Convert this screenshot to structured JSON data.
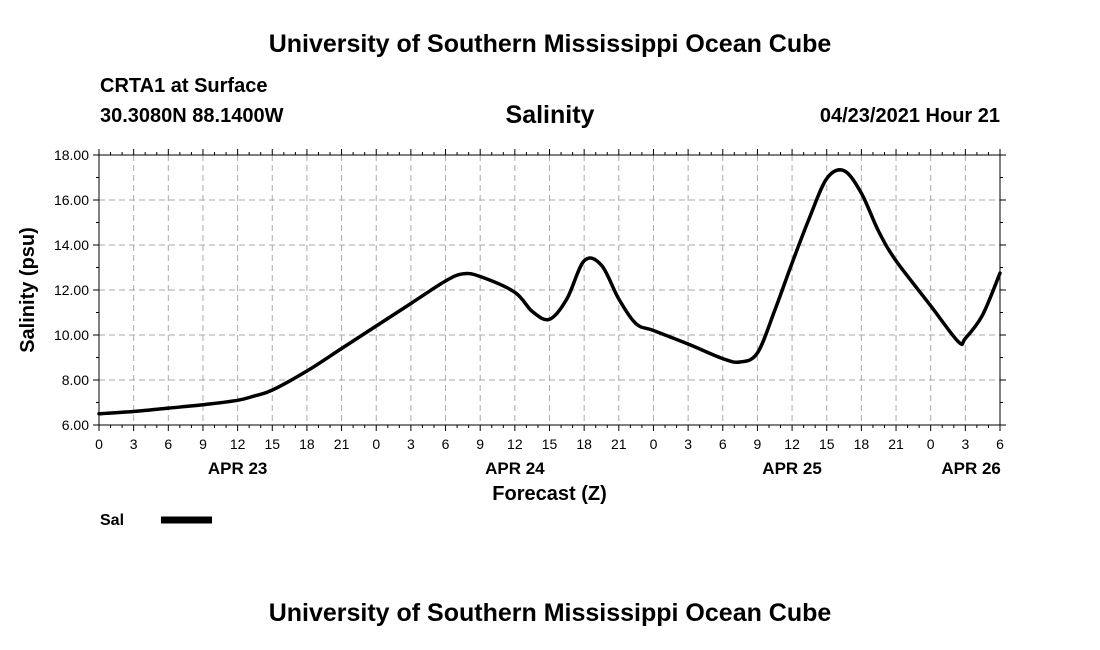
{
  "header": {
    "title": "University of Southern Mississippi Ocean Cube",
    "station": "CRTA1 at Surface",
    "coordinates": "30.3080N  88.1400W",
    "variable": "Salinity",
    "datetime": "04/23/2021 Hour 21"
  },
  "footer": {
    "title": "University of Southern Mississippi Ocean Cube"
  },
  "chart_data": {
    "type": "line",
    "title": "Salinity",
    "xlabel": "Forecast (Z)",
    "ylabel": "Salinity (psu)",
    "ylim": [
      6,
      18
    ],
    "y_ticks": [
      "6.00",
      "8.00",
      "10.00",
      "12.00",
      "14.00",
      "16.00",
      "18.00"
    ],
    "xlim": [
      0,
      78
    ],
    "x_unit": "hours from 00Z APR 23",
    "x_tick_labels": [
      "0",
      "3",
      "6",
      "9",
      "12",
      "15",
      "18",
      "21",
      "0",
      "3",
      "6",
      "9",
      "12",
      "15",
      "18",
      "21",
      "0",
      "3",
      "6",
      "9",
      "12",
      "15",
      "18",
      "21",
      "0",
      "3",
      "6"
    ],
    "date_labels": [
      {
        "label": "APR 23",
        "hour": 12
      },
      {
        "label": "APR 24",
        "hour": 36
      },
      {
        "label": "APR 25",
        "hour": 60
      },
      {
        "label": "APR 26",
        "hour": 75.5
      }
    ],
    "grid": true,
    "legend": {
      "placement": "bottom-left",
      "entries": [
        "Sal"
      ]
    },
    "series": [
      {
        "name": "Sal",
        "color": "#000000",
        "x": [
          0,
          3,
          6,
          9,
          12,
          13.5,
          15,
          18,
          21,
          24,
          27,
          30,
          31.5,
          33,
          36,
          37.5,
          39,
          40.5,
          42,
          43.5,
          45,
          46.5,
          48,
          51,
          54,
          55.5,
          57,
          58.5,
          60,
          61.5,
          63,
          64.5,
          66,
          67.5,
          69,
          72,
          74.4,
          75,
          76.5,
          78
        ],
        "values": [
          6.5,
          6.6,
          6.75,
          6.9,
          7.1,
          7.3,
          7.55,
          8.4,
          9.4,
          10.4,
          11.4,
          12.4,
          12.72,
          12.6,
          11.9,
          11.05,
          10.7,
          11.6,
          13.3,
          13.1,
          11.6,
          10.5,
          10.2,
          9.6,
          8.95,
          8.8,
          9.2,
          11.1,
          13.2,
          15.2,
          16.95,
          17.3,
          16.3,
          14.6,
          13.3,
          11.3,
          9.7,
          9.85,
          10.9,
          12.75
        ]
      }
    ]
  }
}
